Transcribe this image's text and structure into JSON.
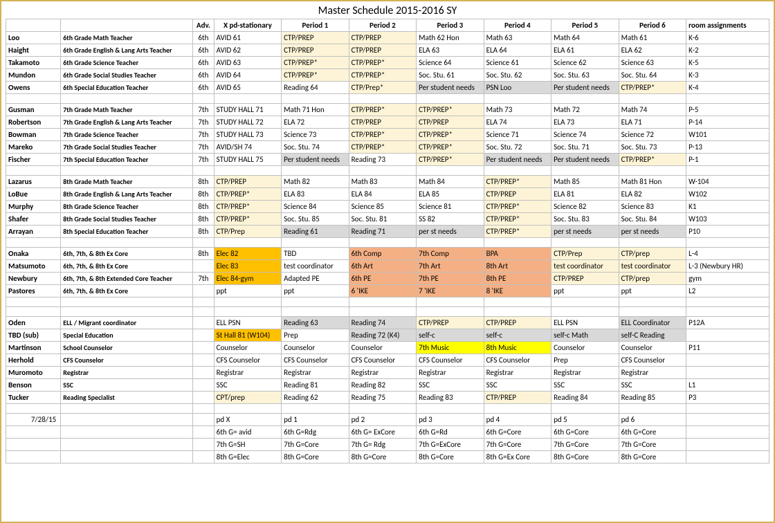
{
  "title": "Master Schedule 2015-2016 SY",
  "headers": [
    "",
    "",
    "Adv.",
    "X pd-stationary",
    "Period 1",
    "Period 2",
    "Period 3",
    "Period 4",
    "Period 5",
    "Period 6",
    "room assignments"
  ],
  "colors": {
    "lightyellow": "#fdf4d7",
    "gray": "#d9d9d9",
    "salmon": "#f4b084",
    "orange": "#ffc000",
    "yellow": "#ffff00",
    "border": "#bfbfbf",
    "frame": "#d4b254"
  },
  "rows": [
    {
      "name": "Loo",
      "role": "6th Grade Math Teacher",
      "adv": "6th",
      "cells": [
        {
          "t": "AVID  61"
        },
        {
          "t": "CTP/PREP",
          "c": "lightyellow"
        },
        {
          "t": "CTP/PREP",
          "c": "lightyellow"
        },
        {
          "t": "Math 62 Hon"
        },
        {
          "t": "Math 63"
        },
        {
          "t": "Math 64"
        },
        {
          "t": "Math 61"
        }
      ],
      "room": "K-6"
    },
    {
      "name": "Haight",
      "role": "6th Grade English & Lang Arts Teacher",
      "adv": "6th",
      "cells": [
        {
          "t": "AVID  62"
        },
        {
          "t": "CTP/PREP",
          "c": "lightyellow"
        },
        {
          "t": "CTP/PREP",
          "c": "lightyellow"
        },
        {
          "t": "ELA 63"
        },
        {
          "t": "ELA 64"
        },
        {
          "t": "ELA 61"
        },
        {
          "t": "ELA 62"
        }
      ],
      "room": "K-2"
    },
    {
      "name": "Takamoto",
      "role": "6th Grade Science Teacher",
      "adv": "6th",
      "cells": [
        {
          "t": "AVID  63"
        },
        {
          "t": "CTP/PREP*",
          "c": "lightyellow"
        },
        {
          "t": "CTP/PREP*",
          "c": "lightyellow"
        },
        {
          "t": "Science 64"
        },
        {
          "t": "Science 61"
        },
        {
          "t": "Science 62"
        },
        {
          "t": "Science 63"
        }
      ],
      "room": "K-5"
    },
    {
      "name": "Mundon",
      "role": "6th Grade Social Studies Teacher",
      "adv": "6th",
      "cells": [
        {
          "t": "AVID  64"
        },
        {
          "t": "CTP/PREP*",
          "c": "lightyellow"
        },
        {
          "t": "CTP/PREP*",
          "c": "lightyellow"
        },
        {
          "t": "Soc. Stu. 61"
        },
        {
          "t": "Soc. Stu. 62"
        },
        {
          "t": "Soc. Stu. 63"
        },
        {
          "t": "Soc. Stu. 64"
        }
      ],
      "room": "K-3"
    },
    {
      "name": "Owens",
      "role": "6th Special Education Teacher",
      "adv": "6th",
      "cells": [
        {
          "t": "AVID  65"
        },
        {
          "t": "Reading 64"
        },
        {
          "t": "CTP/Prep*",
          "c": "lightyellow"
        },
        {
          "t": "Per student needs",
          "c": "gray"
        },
        {
          "t": "PSN  Loo",
          "c": "gray"
        },
        {
          "t": "Per student needs",
          "c": "gray"
        },
        {
          "t": "CTP/PREP*",
          "c": "lightyellow"
        }
      ],
      "room": "K-4"
    },
    {
      "spacer": true
    },
    {
      "name": "Gusman",
      "role": "7th Grade Math Teacher",
      "adv": "7th",
      "cells": [
        {
          "t": "STUDY HALL 71"
        },
        {
          "t": "Math 71 Hon"
        },
        {
          "t": "CTP/PREP*",
          "c": "lightyellow"
        },
        {
          "t": "CTP/PREP*",
          "c": "lightyellow"
        },
        {
          "t": "Math 73"
        },
        {
          "t": "Math 72"
        },
        {
          "t": "Math 74"
        }
      ],
      "room": "P-5"
    },
    {
      "name": "Robertson",
      "role": "7th Grade English & Lang Arts Teacher",
      "adv": "7th",
      "cells": [
        {
          "t": "STUDY HALL 72"
        },
        {
          "t": "ELA 72"
        },
        {
          "t": "CTP/PREP",
          "c": "lightyellow"
        },
        {
          "t": "CTP/PREP",
          "c": "lightyellow"
        },
        {
          "t": "ELA 74"
        },
        {
          "t": "ELA 73"
        },
        {
          "t": "ELA 71"
        }
      ],
      "room": "P-14"
    },
    {
      "name": "Bowman",
      "role": "7th Grade Science Teacher",
      "adv": "7th",
      "cells": [
        {
          "t": "STUDY HALL 73"
        },
        {
          "t": "Science 73"
        },
        {
          "t": "CTP/PREP*",
          "c": "lightyellow"
        },
        {
          "t": "CTP/PREP*",
          "c": "lightyellow"
        },
        {
          "t": "Science 71"
        },
        {
          "t": "Science 74"
        },
        {
          "t": "Science 72"
        }
      ],
      "room": "W101"
    },
    {
      "name": "Mareko",
      "role": "7th Grade Social Studies Teacher",
      "adv": "7th",
      "cells": [
        {
          "t": "AVID/SH 74"
        },
        {
          "t": "Soc. Stu. 74"
        },
        {
          "t": "CTP/PREP*",
          "c": "lightyellow"
        },
        {
          "t": "CTP/PREP*",
          "c": "lightyellow"
        },
        {
          "t": "Soc. Stu. 72"
        },
        {
          "t": "Soc. Stu. 71"
        },
        {
          "t": "Soc. Stu. 73"
        }
      ],
      "room": "P-13"
    },
    {
      "name": "Fischer",
      "role": "7th Special Education Teacher",
      "adv": "7th",
      "cells": [
        {
          "t": "STUDY HALL 75"
        },
        {
          "t": "Per student needs",
          "c": "gray"
        },
        {
          "t": "Reading 73"
        },
        {
          "t": "CTP/PREP*",
          "c": "lightyellow"
        },
        {
          "t": "Per student needs",
          "c": "gray"
        },
        {
          "t": "Per student needs",
          "c": "gray"
        },
        {
          "t": "CTP/PREP*",
          "c": "lightyellow"
        }
      ],
      "room": "P-1"
    },
    {
      "spacer": true
    },
    {
      "name": "Lazarus",
      "role": "8th Grade Math Teacher",
      "adv": "8th",
      "cells": [
        {
          "t": "CTP/PREP",
          "c": "lightyellow"
        },
        {
          "t": "Math 82"
        },
        {
          "t": "Math 83"
        },
        {
          "t": "Math 84"
        },
        {
          "t": "CTP/PREP*",
          "c": "lightyellow"
        },
        {
          "t": "Math 85"
        },
        {
          "t": "Math 81 Hon"
        }
      ],
      "room": "W-104"
    },
    {
      "name": "LoBue",
      "role": "8th Grade English & Lang Arts Teacher",
      "adv": "8th",
      "cells": [
        {
          "t": "CTP/PREP*",
          "c": "lightyellow"
        },
        {
          "t": "ELA 83"
        },
        {
          "t": "ELA 84"
        },
        {
          "t": "ELA 85"
        },
        {
          "t": "CTP/PREP",
          "c": "lightyellow"
        },
        {
          "t": "ELA 81"
        },
        {
          "t": "ELA 82"
        }
      ],
      "room": "W102"
    },
    {
      "name": "Murphy",
      "role": "8th Grade Science Teacher",
      "adv": "8th",
      "cells": [
        {
          "t": "CTP/PREP*",
          "c": "lightyellow"
        },
        {
          "t": "Science 84"
        },
        {
          "t": "Science 85"
        },
        {
          "t": "Science 81"
        },
        {
          "t": "CTP/PREP*",
          "c": "lightyellow"
        },
        {
          "t": "Science 82"
        },
        {
          "t": "Science 83"
        }
      ],
      "room": "K1"
    },
    {
      "name": "Shafer",
      "role": "8th Grade Social Studies Teacher",
      "adv": "8th",
      "cells": [
        {
          "t": "CTP/PREP*",
          "c": "lightyellow"
        },
        {
          "t": "Soc. Stu. 85"
        },
        {
          "t": "Soc. Stu. 81"
        },
        {
          "t": "SS 82"
        },
        {
          "t": "CTP/PREP*",
          "c": "lightyellow"
        },
        {
          "t": "Soc. Stu. 83"
        },
        {
          "t": "Soc. Stu. 84"
        }
      ],
      "room": "W103"
    },
    {
      "name": "Arrayan",
      "role": "8th Special Education Teacher",
      "adv": "8th",
      "cells": [
        {
          "t": "CTP/Prep",
          "c": "lightyellow"
        },
        {
          "t": "Reading 61",
          "c": "gray"
        },
        {
          "t": "Reading 71",
          "c": "gray"
        },
        {
          "t": "per st needs",
          "c": "gray"
        },
        {
          "t": "CTP/PREP*",
          "c": "lightyellow"
        },
        {
          "t": "per st needs",
          "c": "gray"
        },
        {
          "t": "per st needs",
          "c": "gray"
        }
      ],
      "room": "P10"
    },
    {
      "spacer": true
    },
    {
      "name": "Onaka",
      "role": "6th, 7th, & 8th Ex Core",
      "adv": "8th",
      "cells": [
        {
          "t": "Elec 82",
          "c": "orange"
        },
        {
          "t": "TBD"
        },
        {
          "t": "6th Comp",
          "c": "salmon"
        },
        {
          "t": "7th Comp",
          "c": "salmon"
        },
        {
          "t": "BPA",
          "c": "salmon"
        },
        {
          "t": "CTP/Prep",
          "c": "lightyellow"
        },
        {
          "t": "CTP/prep",
          "c": "lightyellow"
        }
      ],
      "room": "L-4"
    },
    {
      "name": "Matsumoto",
      "role": "6th, 7th, & 8th Ex Core",
      "adv": "",
      "cells": [
        {
          "t": "Elec 83",
          "c": "orange"
        },
        {
          "t": "test coordinator"
        },
        {
          "t": "6th Art",
          "c": "salmon"
        },
        {
          "t": "7th Art",
          "c": "salmon"
        },
        {
          "t": "8th Art",
          "c": "salmon"
        },
        {
          "t": "test coordinator",
          "c": "lightyellow"
        },
        {
          "t": "test coordinator",
          "c": "lightyellow"
        }
      ],
      "room": "L-3  (Newbury HR)"
    },
    {
      "name": "Newbury",
      "role": "6th, 7th, & 8th Extended Core Teacher",
      "adv": "7th",
      "cells": [
        {
          "t": "Elec 84-gym",
          "c": "orange"
        },
        {
          "t": "Adapted PE"
        },
        {
          "t": "6th PE",
          "c": "salmon"
        },
        {
          "t": "7th PE",
          "c": "salmon"
        },
        {
          "t": "8th PE",
          "c": "salmon"
        },
        {
          "t": "CTP/PREP",
          "c": "lightyellow"
        },
        {
          "t": "CTP/prep",
          "c": "lightyellow"
        }
      ],
      "room": "gym"
    },
    {
      "name": "Pastores",
      "role": "6th, 7th, & 8th Ex Core",
      "adv": "",
      "cells": [
        {
          "t": "ppt"
        },
        {
          "t": "ppt"
        },
        {
          "t": "6 'IKE",
          "c": "salmon"
        },
        {
          "t": "7 'IKE",
          "c": "salmon"
        },
        {
          "t": "8 'IKE",
          "c": "salmon"
        },
        {
          "t": "ppt"
        },
        {
          "t": "ppt"
        }
      ],
      "room": "L2"
    },
    {
      "spacer": true
    },
    {
      "spacer": true
    },
    {
      "name": "Oden",
      "role": "ELL  / Migrant coordinator",
      "adv": "",
      "cells": [
        {
          "t": "ELL PSN"
        },
        {
          "t": "Reading 63",
          "c": "gray"
        },
        {
          "t": "Reading 74",
          "c": "gray"
        },
        {
          "t": "CTP/PREP",
          "c": "lightyellow"
        },
        {
          "t": "CTP/PREP",
          "c": "lightyellow"
        },
        {
          "t": "ELL PSN"
        },
        {
          "t": "ELL Coordinator",
          "c": "gray"
        }
      ],
      "room": "P12A"
    },
    {
      "name": "TBD (sub)",
      "role": "Special Education",
      "adv": "",
      "cells": [
        {
          "t": "St Hall 81 (W104)",
          "c": "orange"
        },
        {
          "t": "Prep"
        },
        {
          "t": "Reading 72 (K4)",
          "c": "gray"
        },
        {
          "t": "self-c",
          "c": "gray"
        },
        {
          "t": "self-c",
          "c": "gray"
        },
        {
          "t": "self-c  Math",
          "c": "gray"
        },
        {
          "t": "self-C  Reading",
          "c": "gray"
        }
      ],
      "room": ""
    },
    {
      "name": "Martinson",
      "role": "School Counselor",
      "adv": "",
      "cells": [
        {
          "t": "Counselor"
        },
        {
          "t": "Counselor"
        },
        {
          "t": "Counselor"
        },
        {
          "t": "7th Music",
          "c": "yellow"
        },
        {
          "t": "8th Music",
          "c": "yellow"
        },
        {
          "t": "Counselor"
        },
        {
          "t": "Counselor"
        }
      ],
      "room": "P11"
    },
    {
      "name": "Herhold",
      "role": "CFS Counselor",
      "adv": "",
      "cells": [
        {
          "t": "CFS Counselor"
        },
        {
          "t": "CFS Counselor"
        },
        {
          "t": "CFS Counselor"
        },
        {
          "t": "CFS Counselor"
        },
        {
          "t": "CFS Counselor"
        },
        {
          "t": "Prep"
        },
        {
          "t": "CFS Counselor"
        }
      ],
      "room": ""
    },
    {
      "name": "Muromoto",
      "role": "Registrar",
      "adv": "",
      "cells": [
        {
          "t": "Registrar"
        },
        {
          "t": "Registrar"
        },
        {
          "t": "Registrar"
        },
        {
          "t": "Registrar"
        },
        {
          "t": "Registrar"
        },
        {
          "t": "Registrar"
        },
        {
          "t": "Registrar"
        }
      ],
      "room": ""
    },
    {
      "name": "Benson",
      "role": "SSC",
      "adv": "",
      "cells": [
        {
          "t": "SSC"
        },
        {
          "t": "Reading 81"
        },
        {
          "t": "Reading 82"
        },
        {
          "t": "SSC"
        },
        {
          "t": "SSC"
        },
        {
          "t": "SSC"
        },
        {
          "t": "SSC"
        }
      ],
      "room": "L1"
    },
    {
      "name": "Tucker",
      "role": "Reading Specialist",
      "adv": "",
      "cells": [
        {
          "t": "CPT/prep",
          "c": "lightyellow"
        },
        {
          "t": "Reading 62"
        },
        {
          "t": "Reading 75"
        },
        {
          "t": "Reading 83"
        },
        {
          "t": "CTP/PREP",
          "c": "lightyellow"
        },
        {
          "t": "Reading 84"
        },
        {
          "t": "Reading 85"
        }
      ],
      "room": "P3"
    },
    {
      "spacer": true
    },
    {
      "footer": true,
      "name": "7/28/15",
      "cells": [
        "pd X",
        "pd 1",
        "pd 2",
        "pd 3",
        "pd 4",
        "pd 5",
        "pd 6"
      ]
    },
    {
      "footer": true,
      "name": "",
      "cells": [
        "6th G= avid",
        "6th G=Rdg",
        "6th G= ExCore",
        "6th G=Rd",
        "6th G=Core",
        "6th G=Core",
        "6th G=Core"
      ]
    },
    {
      "footer": true,
      "name": "",
      "cells": [
        "7th G=SH",
        "7th G=Core",
        "7th G= Rdg",
        "7th G=ExCore",
        "7th G=Core",
        "7th G=Core",
        "7th G=Core"
      ]
    },
    {
      "footer": true,
      "name": "",
      "cells": [
        "8th G=Elec",
        "8th G=Core",
        "8th G=Core",
        "8th G=Core",
        "8th G=Ex Core",
        "8th G=Core",
        "8th G=Core"
      ]
    }
  ]
}
